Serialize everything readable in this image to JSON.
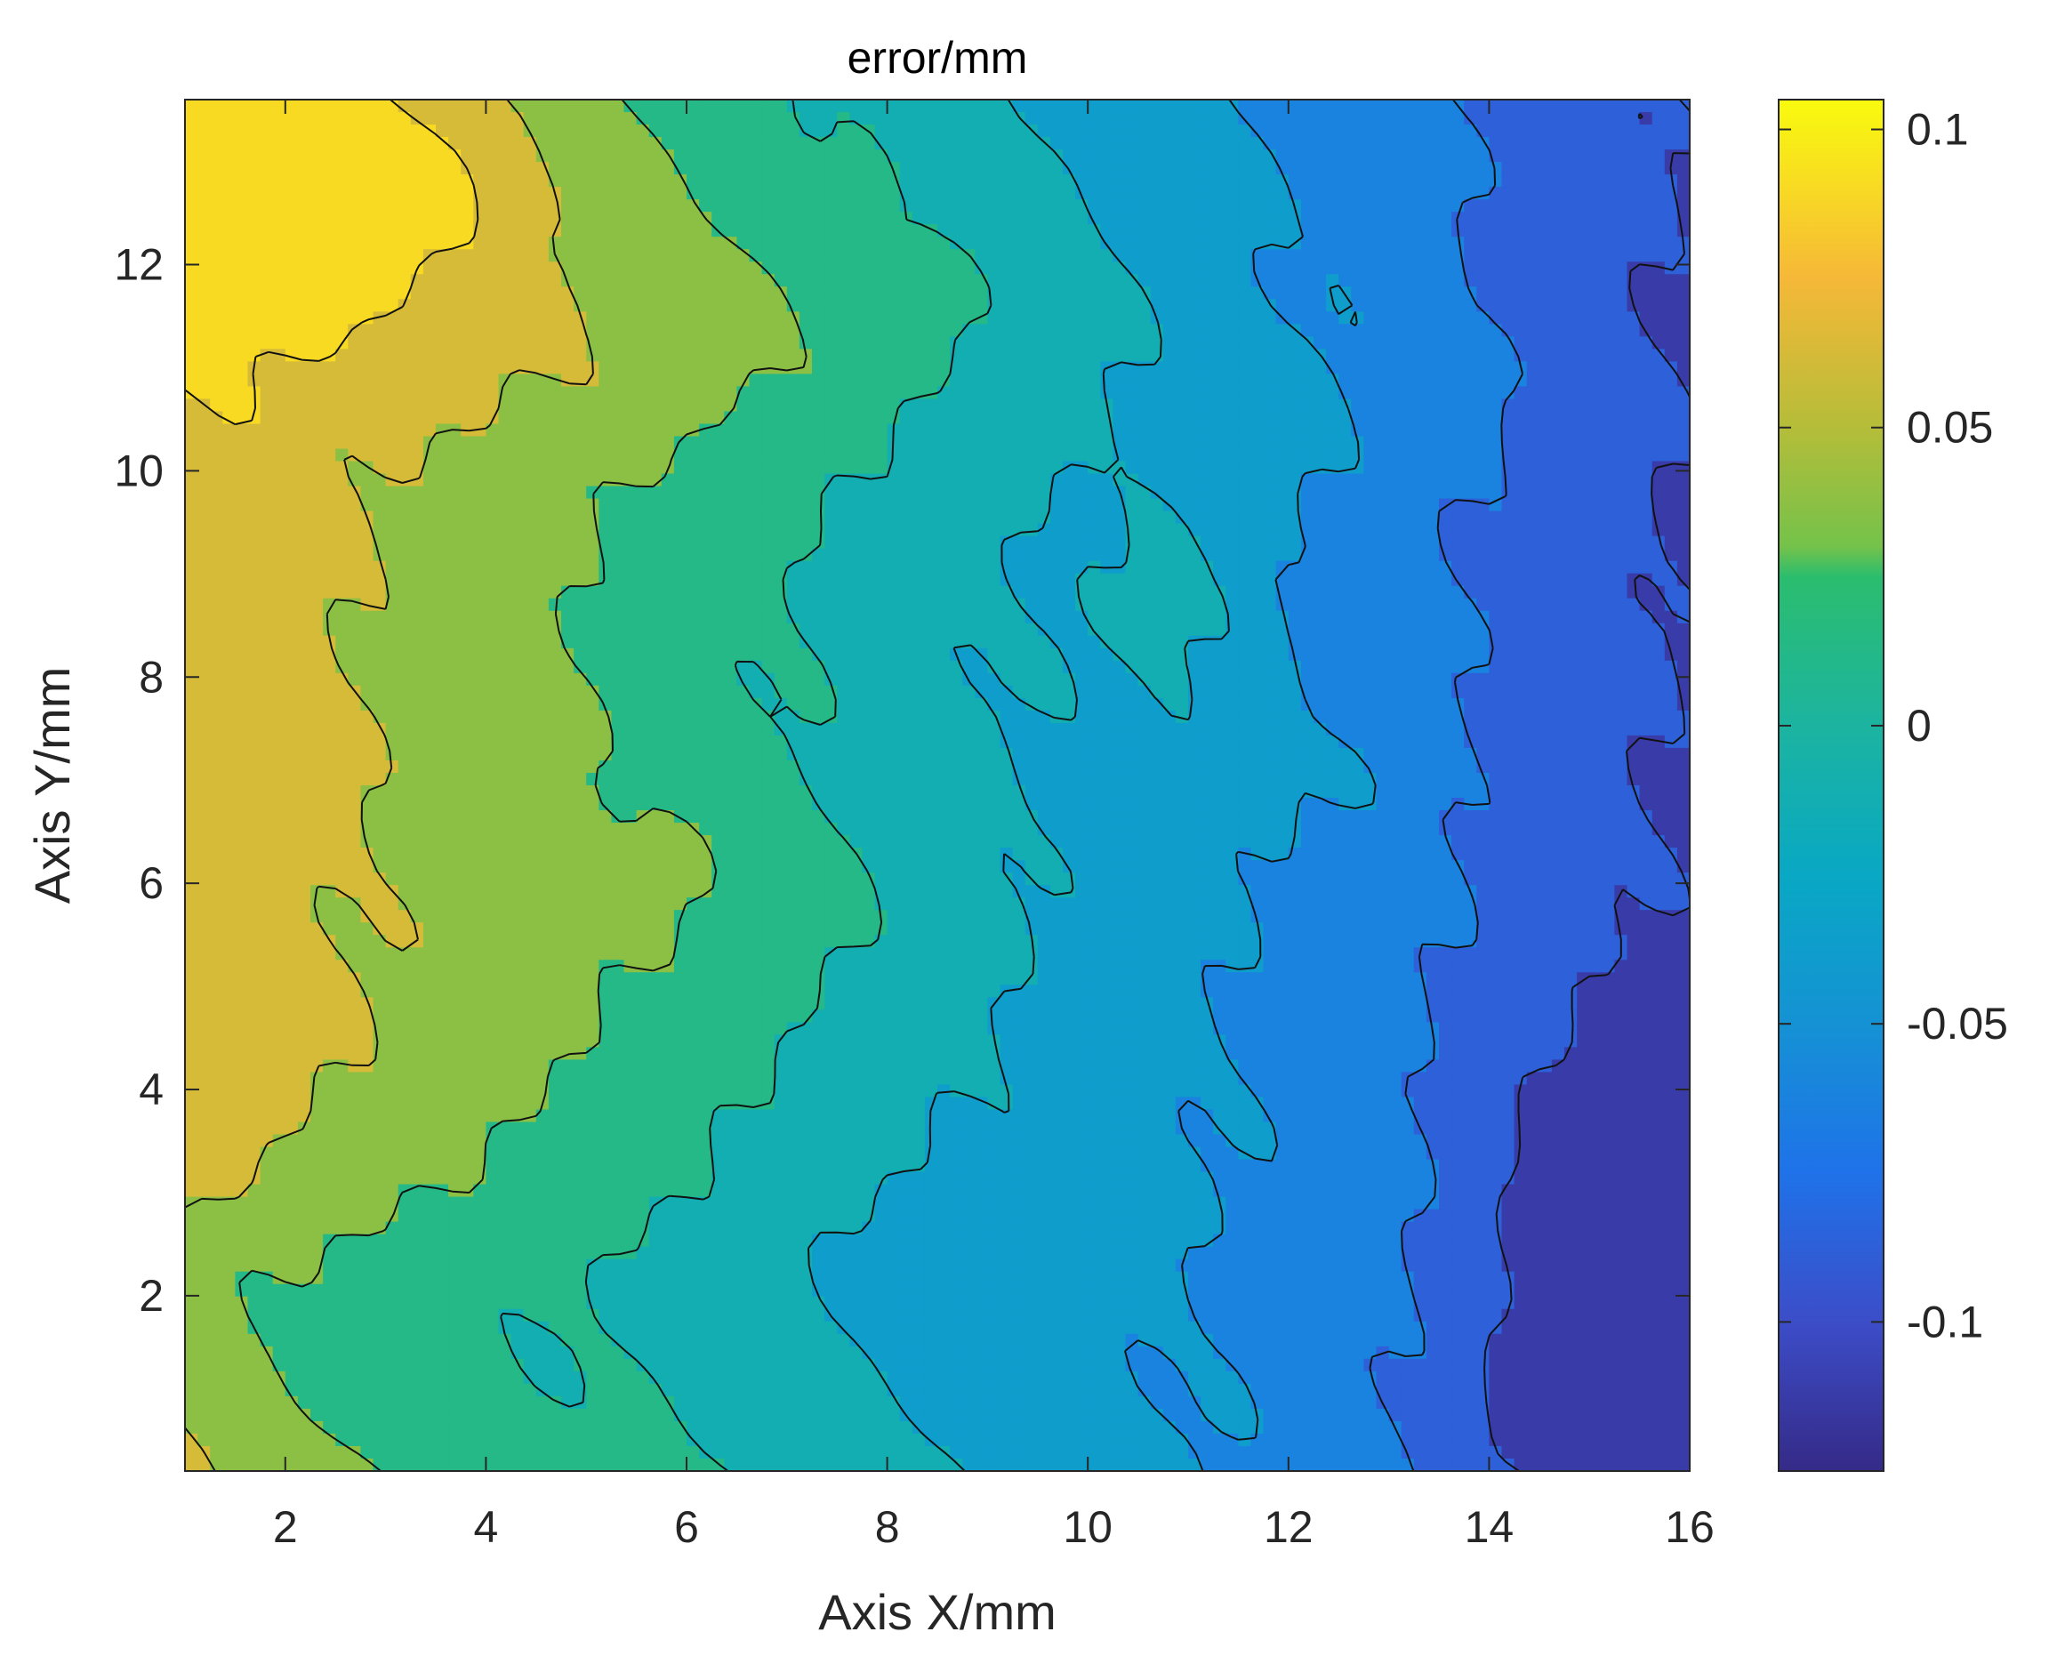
{
  "chart_data": {
    "type": "contourf",
    "title": "error/mm",
    "xlabel": "Axis X/mm",
    "ylabel": "Axis Y/mm",
    "xlim": [
      1,
      16
    ],
    "ylim": [
      0.3,
      13.6
    ],
    "x_ticks": [
      2,
      4,
      6,
      8,
      10,
      12,
      14,
      16
    ],
    "y_ticks": [
      2,
      4,
      6,
      8,
      10,
      12
    ],
    "colorbar": {
      "range": [
        -0.125,
        0.105
      ],
      "ticks": [
        0.1,
        0.05,
        0,
        -0.05,
        -0.1
      ],
      "tick_labels": [
        "0.1",
        "0.05",
        "0",
        "-0.05",
        "-0.1"
      ],
      "colormap": "parula",
      "stops": [
        {
          "v": -0.125,
          "color": "#352a87"
        },
        {
          "v": -0.1,
          "color": "#3c4dc8"
        },
        {
          "v": -0.075,
          "color": "#1f72e9"
        },
        {
          "v": -0.05,
          "color": "#1592d4"
        },
        {
          "v": -0.025,
          "color": "#09a8c4"
        },
        {
          "v": 0,
          "color": "#1cb4a0"
        },
        {
          "v": 0.025,
          "color": "#2bbd6e"
        },
        {
          "v": 0.03,
          "color": "#74c24a"
        },
        {
          "v": 0.05,
          "color": "#b5bd39"
        },
        {
          "v": 0.075,
          "color": "#f6b838"
        },
        {
          "v": 0.105,
          "color": "#f9fb0e"
        }
      ]
    },
    "contour_levels": [
      -0.1,
      -0.075,
      -0.05,
      -0.025,
      0,
      0.025,
      0.05,
      0.075
    ],
    "grid_x": [
      1,
      1.5,
      2,
      2.5,
      3,
      3.5,
      4,
      4.5,
      5,
      5.5,
      6,
      6.5,
      7,
      7.5,
      8,
      8.5,
      9,
      9.5,
      10,
      10.5,
      11,
      11.5,
      12,
      12.5,
      13,
      13.5,
      14,
      14.5,
      15,
      15.5,
      16
    ],
    "grid_y": [
      0.3,
      0.8,
      1.3,
      1.8,
      2.3,
      2.8,
      3.3,
      3.8,
      4.3,
      4.8,
      5.3,
      5.8,
      6.3,
      6.8,
      7.3,
      7.8,
      8.3,
      8.8,
      9.3,
      9.8,
      10.3,
      10.8,
      11.3,
      11.8,
      12.3,
      12.8,
      13.3,
      13.6
    ],
    "description": "Error surface: roughly +0.08 mm at upper-left (x≈1-3, y≈11-13.6), ~0 to +0.03 across left/middle, decreasing to about -0.05 in the center-right and down to about -0.12 at the lower-right (x≈14-16, y≈0.5-3)."
  }
}
